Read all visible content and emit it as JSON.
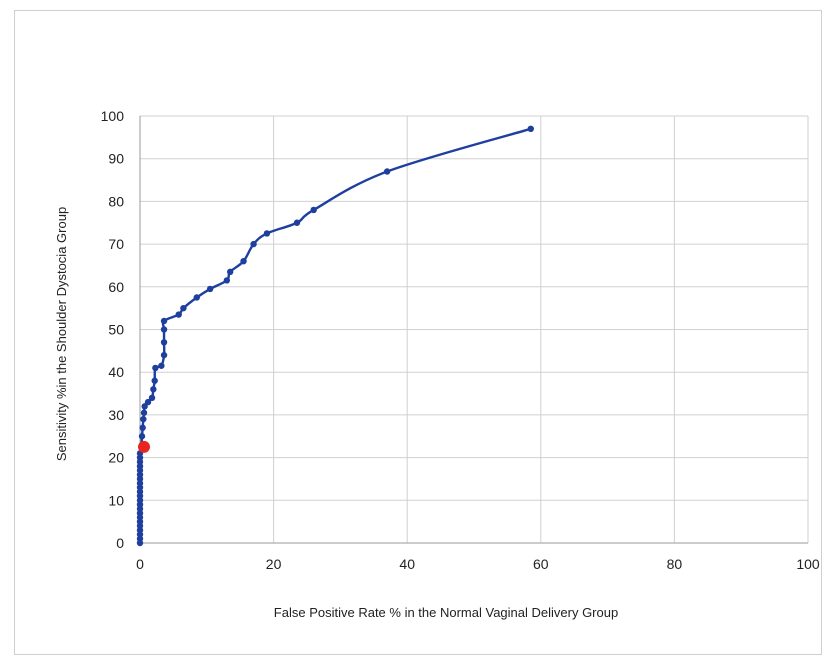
{
  "chart_data": {
    "type": "line",
    "title": "",
    "xlabel": "False Positive Rate % in the Normal Vaginal Delivery Group",
    "ylabel": "Sensitivity %in the Shoulder Dystocia Group",
    "xlim": [
      0,
      100
    ],
    "ylim": [
      0,
      100
    ],
    "xticks": [
      0,
      20,
      40,
      60,
      80,
      100
    ],
    "yticks": [
      0,
      10,
      20,
      30,
      40,
      50,
      60,
      70,
      80,
      90,
      100
    ],
    "grid": true,
    "legend": "none",
    "series": [
      {
        "color": "#1f3f9f",
        "points": [
          [
            0,
            0
          ],
          [
            0,
            1
          ],
          [
            0,
            2
          ],
          [
            0,
            3
          ],
          [
            0,
            4
          ],
          [
            0,
            5
          ],
          [
            0,
            6
          ],
          [
            0,
            7
          ],
          [
            0,
            8
          ],
          [
            0,
            9
          ],
          [
            0,
            10
          ],
          [
            0,
            11
          ],
          [
            0,
            12
          ],
          [
            0,
            13
          ],
          [
            0,
            14
          ],
          [
            0,
            15
          ],
          [
            0,
            16
          ],
          [
            0,
            17
          ],
          [
            0,
            18
          ],
          [
            0,
            19
          ],
          [
            0,
            20
          ],
          [
            0,
            21
          ],
          [
            0.2,
            22.5
          ],
          [
            0.3,
            25
          ],
          [
            0.4,
            27
          ],
          [
            0.5,
            29
          ],
          [
            0.6,
            30.5
          ],
          [
            0.7,
            32
          ],
          [
            1.2,
            33
          ],
          [
            1.8,
            34
          ],
          [
            2,
            36
          ],
          [
            2.2,
            38
          ],
          [
            2.3,
            41
          ],
          [
            3.2,
            41.5
          ],
          [
            3.6,
            44
          ],
          [
            3.6,
            47
          ],
          [
            3.6,
            50
          ],
          [
            3.6,
            52
          ],
          [
            5.8,
            53.5
          ],
          [
            6.5,
            55
          ],
          [
            8.5,
            57.5
          ],
          [
            10.5,
            59.5
          ],
          [
            13,
            61.5
          ],
          [
            13.5,
            63.5
          ],
          [
            15.5,
            66
          ],
          [
            17,
            70
          ],
          [
            19,
            72.5
          ],
          [
            23.5,
            75
          ],
          [
            26,
            78
          ],
          [
            37,
            87
          ],
          [
            58.5,
            97
          ]
        ]
      }
    ],
    "highlight_point": {
      "x": 0.6,
      "y": 22.5,
      "color": "#e8251f"
    }
  }
}
